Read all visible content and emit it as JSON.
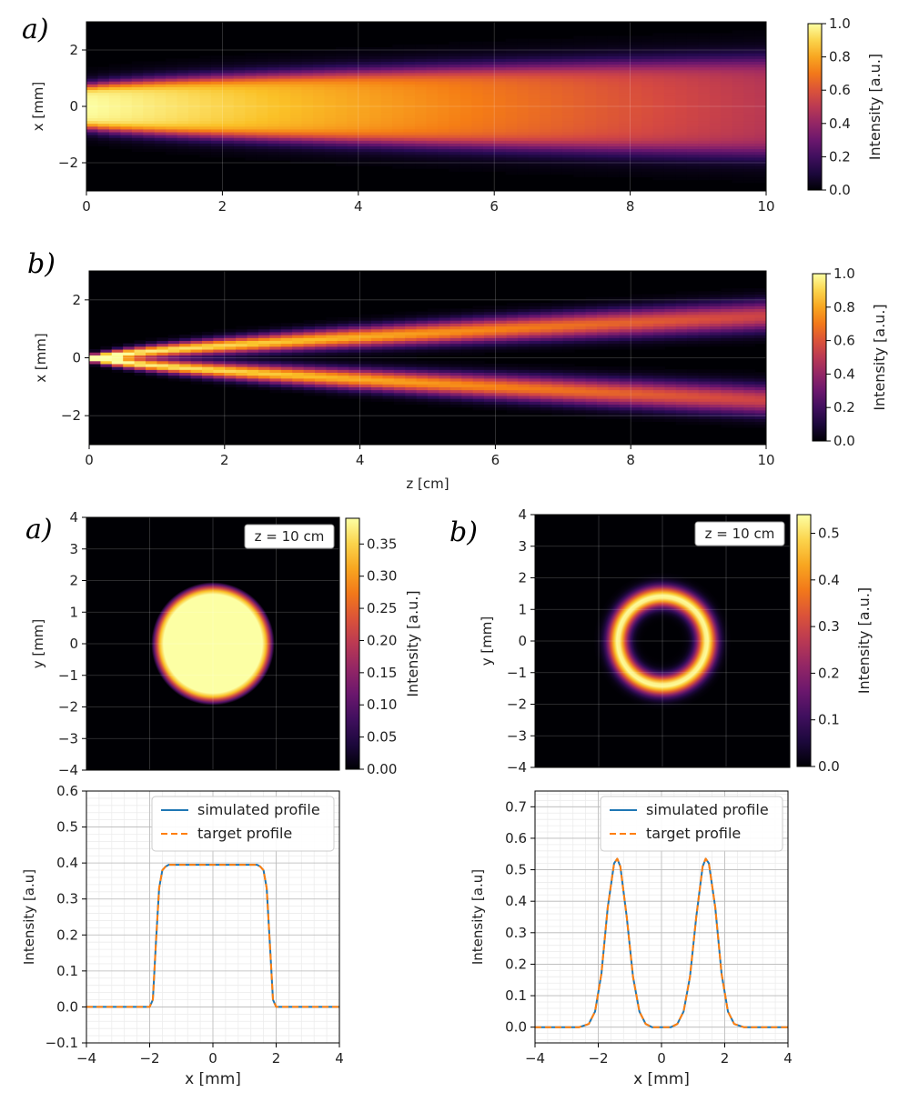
{
  "figure": {
    "panel_labels": [
      "a)",
      "b)",
      "a)",
      "b)"
    ]
  },
  "colors": {
    "simulated": "#1f77b4",
    "target": "#ff7f0e",
    "colormap": "inferno",
    "background": "#000004"
  },
  "chart_data": [
    {
      "id": "propagation_a",
      "type": "heatmap",
      "panel_label": "a)",
      "xlabel": "",
      "ylabel": "x [mm]",
      "xlim": [
        0,
        10
      ],
      "ylim": [
        -3,
        3
      ],
      "xticks": [
        0,
        2,
        4,
        6,
        8,
        10
      ],
      "yticks": [
        -2,
        0,
        2
      ],
      "grid": true,
      "colormap": "inferno",
      "colorbar": {
        "label": "Intensity [a.u.]",
        "range": [
          0,
          1.0
        ],
        "ticks": [
          "0.0",
          "0.2",
          "0.4",
          "0.6",
          "0.8",
          "1.0"
        ]
      },
      "beam": {
        "shape": "flattop",
        "peak_start": 1.0,
        "peak_end": 0.5,
        "halfwidth_start": 0.75,
        "halfwidth_end": 1.7
      }
    },
    {
      "id": "propagation_b",
      "type": "heatmap",
      "panel_label": "b)",
      "xlabel": "z [cm]",
      "ylabel": "x [mm]",
      "xlim": [
        0,
        10
      ],
      "ylim": [
        -3,
        3
      ],
      "xticks": [
        0,
        2,
        4,
        6,
        8,
        10
      ],
      "yticks": [
        -2,
        0,
        2
      ],
      "grid": true,
      "colormap": "inferno",
      "colorbar": {
        "label": "Intensity [a.u.]",
        "range": [
          0,
          1.0
        ],
        "ticks": [
          "0.0",
          "0.2",
          "0.4",
          "0.6",
          "0.8",
          "1.0"
        ]
      },
      "beam": {
        "shape": "ring",
        "peak_start": 1.0,
        "peak_end": 0.55,
        "center_start": 0.0,
        "center_end": 1.45
      }
    },
    {
      "id": "crosssection_a",
      "type": "heatmap",
      "panel_label": "a)",
      "annotation": "z = 10 cm",
      "xlabel": "",
      "ylabel": "y [mm]",
      "xlim": [
        -4,
        4
      ],
      "ylim": [
        -4,
        4
      ],
      "xticks": [],
      "yticks": [
        -4,
        -3,
        -2,
        -1,
        0,
        1,
        2,
        3,
        4
      ],
      "grid": true,
      "colormap": "inferno",
      "colorbar": {
        "label": "Intensity [a.u.]",
        "range": [
          0,
          0.39
        ],
        "ticks": [
          "0.00",
          "0.05",
          "0.10",
          "0.15",
          "0.20",
          "0.25",
          "0.30",
          "0.35"
        ]
      },
      "spot": {
        "shape": "disk",
        "radius": 1.7,
        "peak": 0.39
      }
    },
    {
      "id": "crosssection_b",
      "type": "heatmap",
      "panel_label": "b)",
      "annotation": "z = 10 cm",
      "xlabel": "",
      "ylabel": "y [mm]",
      "xlim": [
        -4,
        4
      ],
      "ylim": [
        -4,
        4
      ],
      "xticks": [],
      "yticks": [
        -4,
        -3,
        -2,
        -1,
        0,
        1,
        2,
        3,
        4
      ],
      "grid": true,
      "colormap": "inferno",
      "colorbar": {
        "label": "Intensity [a.u.]",
        "range": [
          0,
          0.54
        ],
        "ticks": [
          "0.0",
          "0.1",
          "0.2",
          "0.3",
          "0.4",
          "0.5"
        ]
      },
      "spot": {
        "shape": "ring",
        "radius": 1.4,
        "peak": 0.54
      }
    },
    {
      "id": "profile_a",
      "type": "line",
      "xlabel": "x [mm]",
      "ylabel": "Intensity [a.u]",
      "xlim": [
        -4,
        4
      ],
      "ylim": [
        -0.1,
        0.6
      ],
      "xticks": [
        -4,
        -2,
        0,
        2,
        4
      ],
      "yticks": [
        "−0.1",
        "0.0",
        "0.1",
        "0.2",
        "0.3",
        "0.4",
        "0.5",
        "0.6"
      ],
      "grid": true,
      "legend": "top-right",
      "series": [
        {
          "name": "simulated profile",
          "style": "solid",
          "x": [
            -4,
            -2.5,
            -2.0,
            -1.9,
            -1.8,
            -1.7,
            -1.6,
            -1.5,
            -1.4,
            -1.0,
            0,
            1.0,
            1.4,
            1.5,
            1.6,
            1.7,
            1.8,
            1.9,
            2.0,
            2.5,
            4
          ],
          "y": [
            0.0,
            0.0,
            0.0,
            0.02,
            0.18,
            0.33,
            0.38,
            0.39,
            0.395,
            0.395,
            0.395,
            0.395,
            0.395,
            0.39,
            0.38,
            0.33,
            0.18,
            0.02,
            0.0,
            0.0,
            0.0
          ]
        },
        {
          "name": "target profile",
          "style": "dashed",
          "x": [
            -4,
            -2.5,
            -2.0,
            -1.9,
            -1.8,
            -1.7,
            -1.6,
            -1.5,
            -1.4,
            -1.0,
            0,
            1.0,
            1.4,
            1.5,
            1.6,
            1.7,
            1.8,
            1.9,
            2.0,
            2.5,
            4
          ],
          "y": [
            0.0,
            0.0,
            0.0,
            0.02,
            0.18,
            0.33,
            0.38,
            0.39,
            0.395,
            0.395,
            0.395,
            0.395,
            0.395,
            0.39,
            0.38,
            0.33,
            0.18,
            0.02,
            0.0,
            0.0,
            0.0
          ]
        }
      ]
    },
    {
      "id": "profile_b",
      "type": "line",
      "xlabel": "x [mm]",
      "ylabel": "Intensity [a.u]",
      "xlim": [
        -4,
        4
      ],
      "ylim": [
        -0.05,
        0.75
      ],
      "xticks": [
        -4,
        -2,
        0,
        2,
        4
      ],
      "yticks": [
        "0.0",
        "0.1",
        "0.2",
        "0.3",
        "0.4",
        "0.5",
        "0.6",
        "0.7"
      ],
      "grid": true,
      "legend": "top-right",
      "series": [
        {
          "name": "simulated profile",
          "style": "solid",
          "x": [
            -4,
            -2.6,
            -2.3,
            -2.1,
            -1.9,
            -1.7,
            -1.5,
            -1.4,
            -1.3,
            -1.1,
            -0.9,
            -0.7,
            -0.5,
            -0.3,
            0,
            0.3,
            0.5,
            0.7,
            0.9,
            1.1,
            1.3,
            1.4,
            1.5,
            1.7,
            1.9,
            2.1,
            2.3,
            2.6,
            4
          ],
          "y": [
            0.0,
            0.0,
            0.01,
            0.05,
            0.17,
            0.38,
            0.52,
            0.535,
            0.51,
            0.35,
            0.16,
            0.05,
            0.01,
            0.0,
            0.0,
            0.0,
            0.01,
            0.05,
            0.16,
            0.35,
            0.51,
            0.535,
            0.52,
            0.38,
            0.17,
            0.05,
            0.01,
            0.0,
            0.0
          ]
        },
        {
          "name": "target profile",
          "style": "dashed",
          "x": [
            -4,
            -2.6,
            -2.3,
            -2.1,
            -1.9,
            -1.7,
            -1.5,
            -1.4,
            -1.3,
            -1.1,
            -0.9,
            -0.7,
            -0.5,
            -0.3,
            0,
            0.3,
            0.5,
            0.7,
            0.9,
            1.1,
            1.3,
            1.4,
            1.5,
            1.7,
            1.9,
            2.1,
            2.3,
            2.6,
            4
          ],
          "y": [
            0.0,
            0.0,
            0.01,
            0.05,
            0.17,
            0.38,
            0.52,
            0.535,
            0.51,
            0.35,
            0.16,
            0.05,
            0.01,
            0.0,
            0.0,
            0.0,
            0.01,
            0.05,
            0.16,
            0.35,
            0.51,
            0.535,
            0.52,
            0.38,
            0.17,
            0.05,
            0.01,
            0.0,
            0.0
          ]
        }
      ]
    }
  ]
}
